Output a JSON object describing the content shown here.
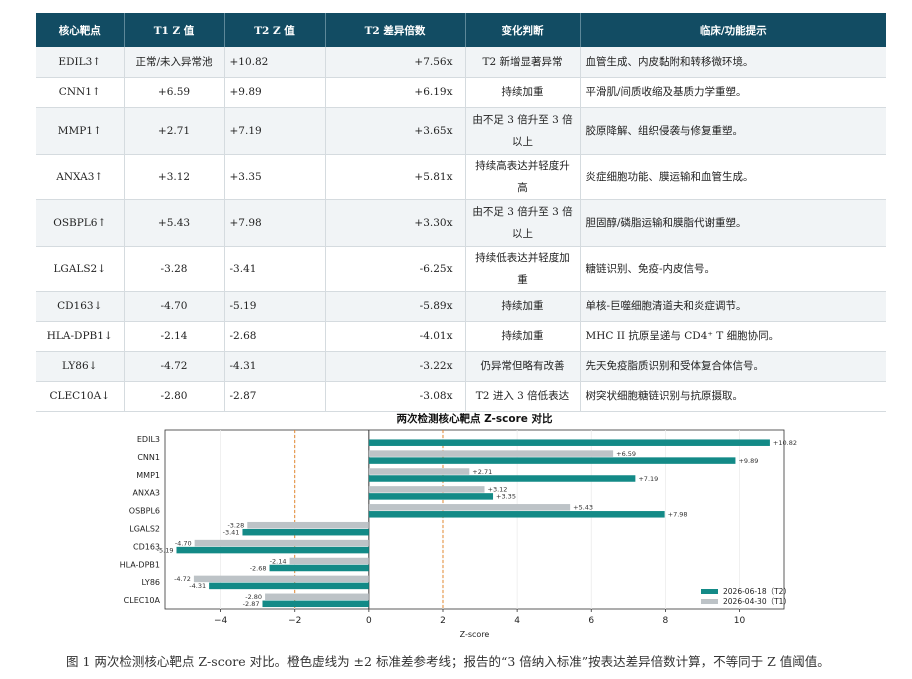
{
  "table": {
    "headers": [
      "核心靶点",
      "T1 Z 值",
      "T2 Z 值",
      "T2 差异倍数",
      "变化判断",
      "临床/功能提示"
    ],
    "rows": [
      {
        "target": "EDIL3↑",
        "t1": "正常/未入异常池",
        "t2": "+10.82",
        "fold": "+7.56x",
        "change": "T2 新增显著异常",
        "note": "血管生成、内皮黏附和转移微环境。"
      },
      {
        "target": "CNN1↑",
        "t1": "+6.59",
        "t2": "+9.89",
        "fold": "+6.19x",
        "change": "持续加重",
        "note": "平滑肌/间质收缩及基质力学重塑。"
      },
      {
        "target": "MMP1↑",
        "t1": "+2.71",
        "t2": "+7.19",
        "fold": "+3.65x",
        "change": "由不足 3 倍升至 3 倍以上",
        "note": "胶原降解、组织侵袭与修复重塑。"
      },
      {
        "target": "ANXA3↑",
        "t1": "+3.12",
        "t2": "+3.35",
        "fold": "+5.81x",
        "change": "持续高表达并轻度升高",
        "note": "炎症细胞功能、膜运输和血管生成。"
      },
      {
        "target": "OSBPL6↑",
        "t1": "+5.43",
        "t2": "+7.98",
        "fold": "+3.30x",
        "change": "由不足 3 倍升至 3 倍以上",
        "note": "胆固醇/磷脂运输和膜脂代谢重塑。"
      },
      {
        "target": "LGALS2↓",
        "t1": "-3.28",
        "t2": "-3.41",
        "fold": "-6.25x",
        "change": "持续低表达并轻度加重",
        "note": "糖链识别、免疫-内皮信号。"
      },
      {
        "target": "CD163↓",
        "t1": "-4.70",
        "t2": "-5.19",
        "fold": "-5.89x",
        "change": "持续加重",
        "note": "单核-巨噬细胞清道夫和炎症调节。"
      },
      {
        "target": "HLA-DPB1↓",
        "t1": "-2.14",
        "t2": "-2.68",
        "fold": "-4.01x",
        "change": "持续加重",
        "note": "MHC II 抗原呈递与 CD4⁺ T 细胞协同。"
      },
      {
        "target": "LY86↓",
        "t1": "-4.72",
        "t2": "-4.31",
        "fold": "-3.22x",
        "change": "仍异常但略有改善",
        "note": "先天免疫脂质识别和受体复合体信号。"
      },
      {
        "target": "CLEC10A↓",
        "t1": "-2.80",
        "t2": "-2.87",
        "fold": "-3.08x",
        "change": "T2 进入 3 倍低表达",
        "note": "树突状细胞糖链识别与抗原摄取。"
      }
    ]
  },
  "chart_data": {
    "type": "bar",
    "orientation": "horizontal",
    "title": "两次检测核心靶点 Z-score 对比",
    "xlabel": "Z-score",
    "ylabel": "",
    "categories": [
      "EDIL3",
      "CNN1",
      "MMP1",
      "ANXA3",
      "OSBPL6",
      "LGALS2",
      "CD163",
      "HLA-DPB1",
      "LY86",
      "CLEC10A"
    ],
    "series": [
      {
        "name": "2026-04-30（T1）",
        "color": "#bdc3c7",
        "values": [
          null,
          6.59,
          2.71,
          3.12,
          5.43,
          -3.28,
          -4.7,
          -2.14,
          -4.72,
          -2.8
        ],
        "labels": [
          "",
          "+6.59",
          "+2.71",
          "+3.12",
          "+5.43",
          "-3.28",
          "-4.70",
          "-2.14",
          "-4.72",
          "-2.80"
        ]
      },
      {
        "name": "2026-06-18（T2）",
        "color": "#138a87",
        "values": [
          10.82,
          9.89,
          7.19,
          3.35,
          7.98,
          -3.41,
          -5.19,
          -2.68,
          -4.31,
          -2.87
        ],
        "labels": [
          "+10.82",
          "+9.89",
          "+7.19",
          "+3.35",
          "+7.98",
          "-3.41",
          "-5.19",
          "-2.68",
          "-4.31",
          "-2.87"
        ]
      }
    ],
    "xlim": [
      -5.5,
      11.2
    ],
    "xticks": [
      -4,
      -2,
      0,
      2,
      4,
      6,
      8,
      10
    ],
    "xtick_labels": [
      "−4",
      "−2",
      "0",
      "2",
      "4",
      "6",
      "8",
      "10"
    ],
    "reference_lines": [
      -2,
      2
    ],
    "reference_color": "#e07b1a",
    "grid": true,
    "legend": "bottom-right"
  },
  "caption": "图 1  两次检测核心靶点 Z-score 对比。橙色虚线为 ±2 标准差参考线；报告的“3 倍纳入标准”按表达差异倍数计算，不等同于 Z 值阈值。"
}
